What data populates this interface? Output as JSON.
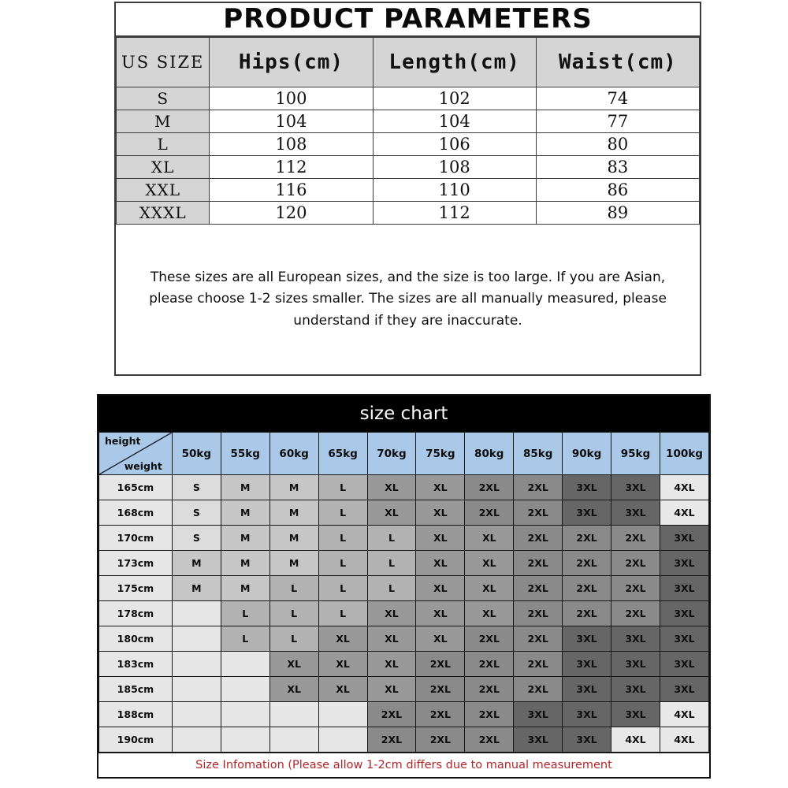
{
  "product_parameters": {
    "title": "PRODUCT PARAMETERS",
    "columns": [
      "US SIZE",
      "Hips(cm)",
      "Length(cm)",
      "Waist(cm)"
    ],
    "rows": [
      {
        "size": "S",
        "hips": "100",
        "length": "102",
        "waist": "74"
      },
      {
        "size": "M",
        "hips": "104",
        "length": "104",
        "waist": "77"
      },
      {
        "size": "L",
        "hips": "108",
        "length": "106",
        "waist": "80"
      },
      {
        "size": "XL",
        "hips": "112",
        "length": "108",
        "waist": "83"
      },
      {
        "size": "XXL",
        "hips": "116",
        "length": "110",
        "waist": "86"
      },
      {
        "size": "XXXL",
        "hips": "120",
        "length": "112",
        "waist": "89"
      }
    ],
    "note": "These sizes are all European sizes, and the size is too large. If you are Asian, please choose 1-2 sizes smaller. The sizes are all manually measured, please understand if they are inaccurate."
  },
  "size_chart": {
    "title": "size chart",
    "corner": {
      "top_label": "height",
      "bottom_label": "weight"
    },
    "weight_headers": [
      "50kg",
      "55kg",
      "60kg",
      "65kg",
      "70kg",
      "75kg",
      "80kg",
      "85kg",
      "90kg",
      "95kg",
      "100kg"
    ],
    "rows": [
      {
        "height": "165cm",
        "values": [
          "S",
          "M",
          "M",
          "L",
          "XL",
          "XL",
          "2XL",
          "2XL",
          "3XL",
          "3XL",
          "4XL"
        ]
      },
      {
        "height": "168cm",
        "values": [
          "S",
          "M",
          "M",
          "L",
          "XL",
          "XL",
          "2XL",
          "2XL",
          "3XL",
          "3XL",
          "4XL"
        ]
      },
      {
        "height": "170cm",
        "values": [
          "S",
          "M",
          "M",
          "L",
          "L",
          "XL",
          "XL",
          "2XL",
          "2XL",
          "2XL",
          "3XL"
        ]
      },
      {
        "height": "173cm",
        "values": [
          "M",
          "M",
          "M",
          "L",
          "L",
          "XL",
          "XL",
          "2XL",
          "2XL",
          "2XL",
          "3XL"
        ]
      },
      {
        "height": "175cm",
        "values": [
          "M",
          "M",
          "L",
          "L",
          "L",
          "XL",
          "XL",
          "2XL",
          "2XL",
          "2XL",
          "3XL"
        ]
      },
      {
        "height": "178cm",
        "values": [
          "",
          "L",
          "L",
          "L",
          "XL",
          "XL",
          "XL",
          "2XL",
          "2XL",
          "2XL",
          "3XL"
        ]
      },
      {
        "height": "180cm",
        "values": [
          "",
          "L",
          "L",
          "XL",
          "XL",
          "XL",
          "2XL",
          "2XL",
          "3XL",
          "3XL",
          "3XL"
        ]
      },
      {
        "height": "183cm",
        "values": [
          "",
          "",
          "XL",
          "XL",
          "XL",
          "2XL",
          "2XL",
          "2XL",
          "3XL",
          "3XL",
          "3XL"
        ]
      },
      {
        "height": "185cm",
        "values": [
          "",
          "",
          "XL",
          "XL",
          "XL",
          "2XL",
          "2XL",
          "2XL",
          "3XL",
          "3XL",
          "3XL"
        ]
      },
      {
        "height": "188cm",
        "values": [
          "",
          "",
          "",
          "",
          "2XL",
          "2XL",
          "2XL",
          "3XL",
          "3XL",
          "3XL",
          "4XL"
        ]
      },
      {
        "height": "190cm",
        "values": [
          "",
          "",
          "",
          "",
          "2XL",
          "2XL",
          "2XL",
          "3XL",
          "3XL",
          "4XL",
          "4XL"
        ]
      }
    ],
    "footer": "Size Infomation  (Please allow 1-2cm differs due to manual measurement",
    "colors": {
      "title_bar_bg": "#000000",
      "header_bg": "#aac9e9",
      "label_col_bg": "#e6e6e6",
      "footer_text": "#b32428",
      "shade_map": {
        "": "#e7e7e7",
        "S": "#dcdcdc",
        "M": "#c6c6c6",
        "L": "#b2b2b2",
        "XL": "#999999",
        "2XL": "#8a8a8a",
        "3XL": "#666666",
        "4XL": "#e8e8e8"
      }
    }
  }
}
